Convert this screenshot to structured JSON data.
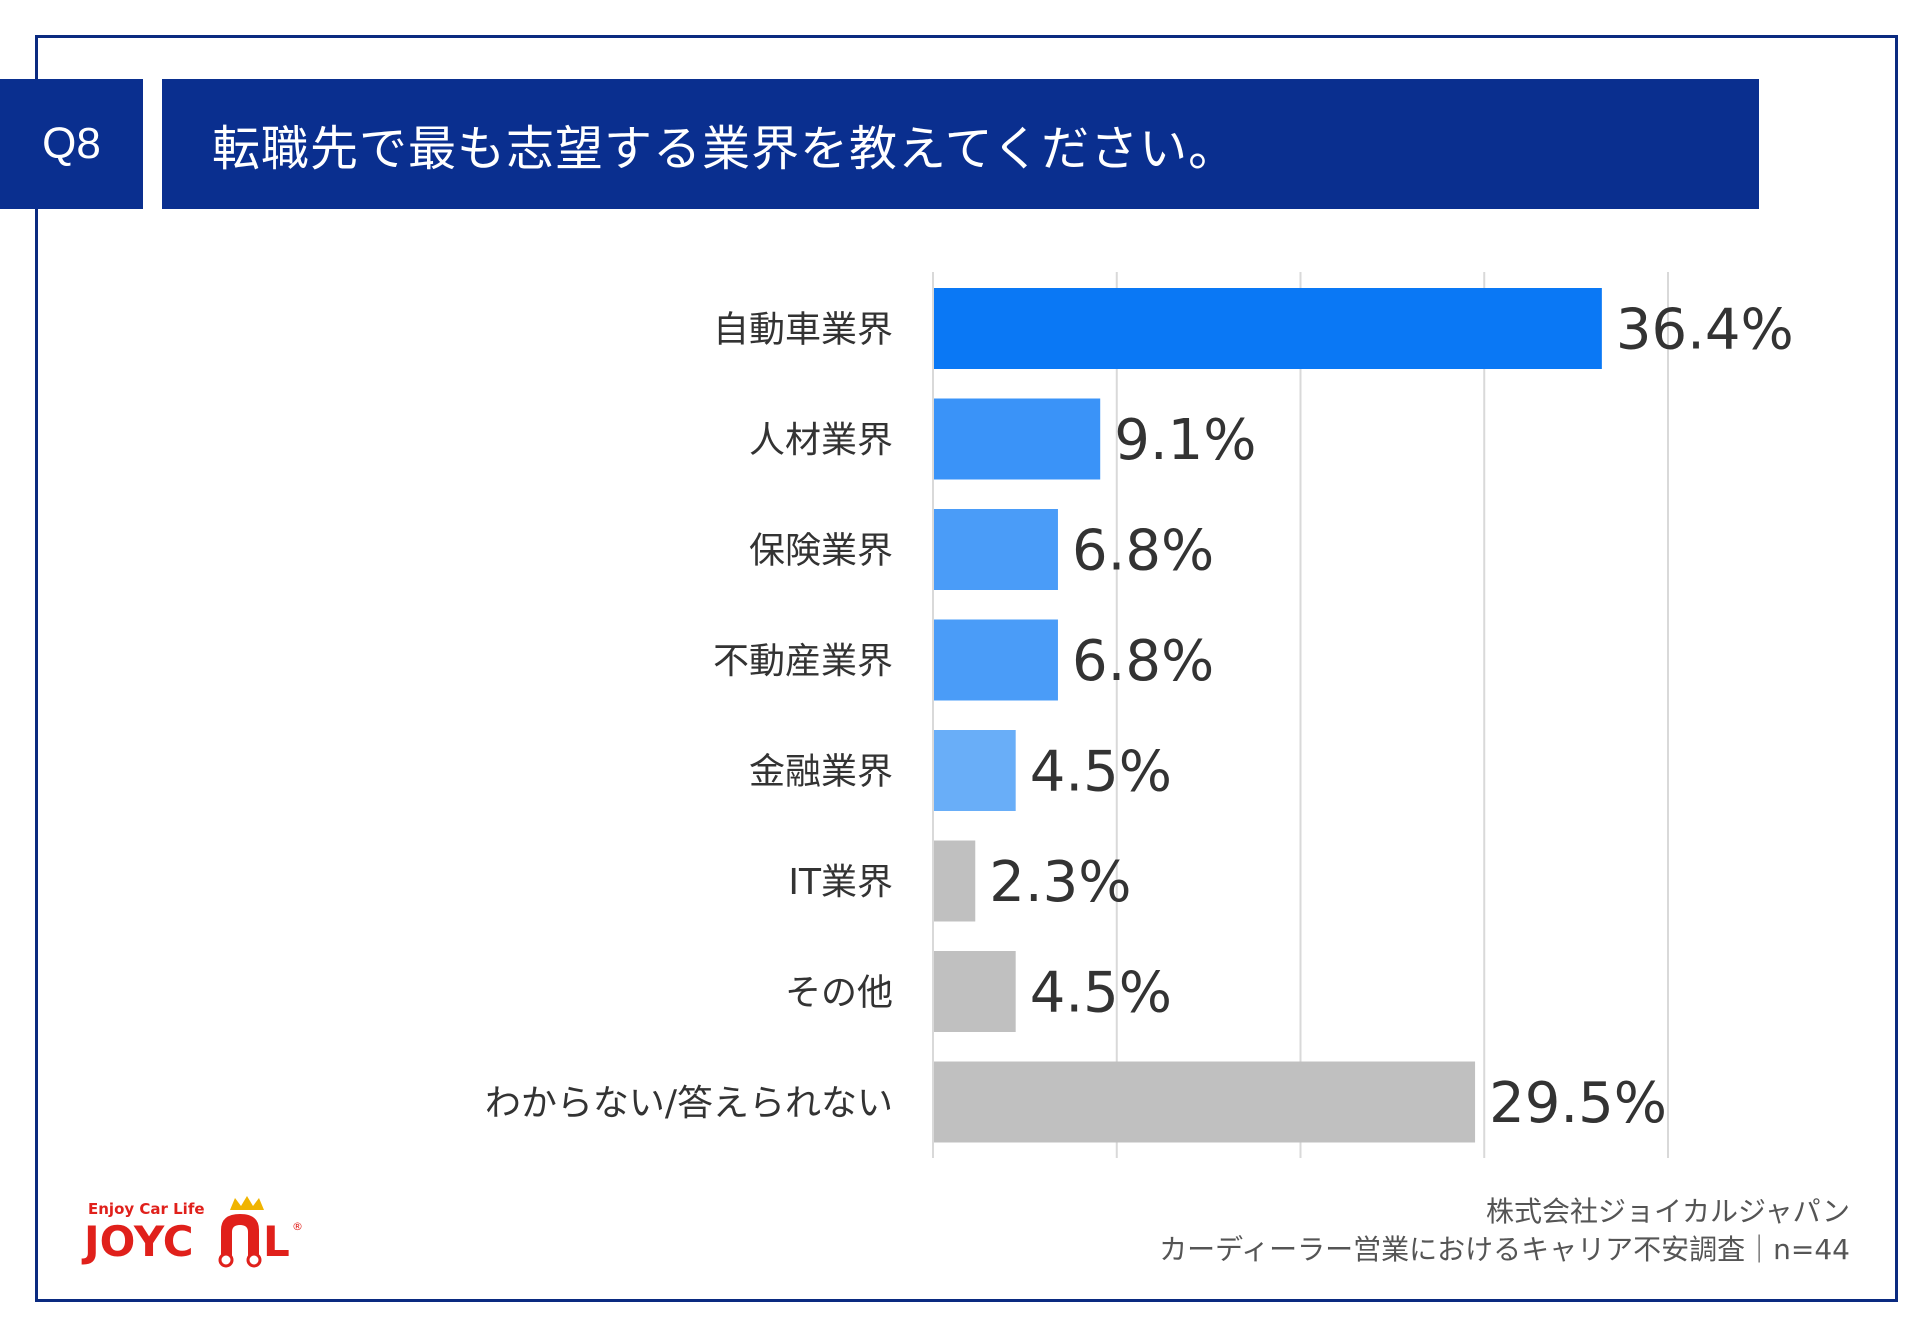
{
  "header": {
    "question_number": "Q8",
    "question_text": "転職先で最も志望する業界を教えてください。"
  },
  "chart_data": {
    "type": "bar",
    "orientation": "horizontal",
    "categories": [
      "自動車業界",
      "人材業界",
      "保険業界",
      "不動産業界",
      "金融業界",
      "IT業界",
      "その他",
      "わからない/答えられない"
    ],
    "values": [
      36.4,
      9.1,
      6.8,
      6.8,
      4.5,
      2.3,
      4.5,
      29.5
    ],
    "value_labels": [
      "36.4%",
      "9.1%",
      "6.8%",
      "6.8%",
      "4.5%",
      "2.3%",
      "4.5%",
      "29.5%"
    ],
    "bar_colors": [
      "#0a78f5",
      "#3a93f8",
      "#4a9cf8",
      "#4a9cf8",
      "#69aef8",
      "#c0c0c0",
      "#c0c0c0",
      "#c0c0c0"
    ],
    "xlim": [
      0,
      40
    ],
    "grid": true
  },
  "logo": {
    "tagline": "Enjoy Car Life",
    "brand_left": "JOYC",
    "brand_right": "L",
    "registered": "®"
  },
  "footer": {
    "company": "株式会社ジョイカルジャパン",
    "survey": "カーディーラー営業におけるキャリア不安調査｜n=44"
  },
  "colors": {
    "navy": "#0a2f8f",
    "grid": "#d9d9d9",
    "brand_red": "#e0201b",
    "crown": "#f0b400"
  }
}
